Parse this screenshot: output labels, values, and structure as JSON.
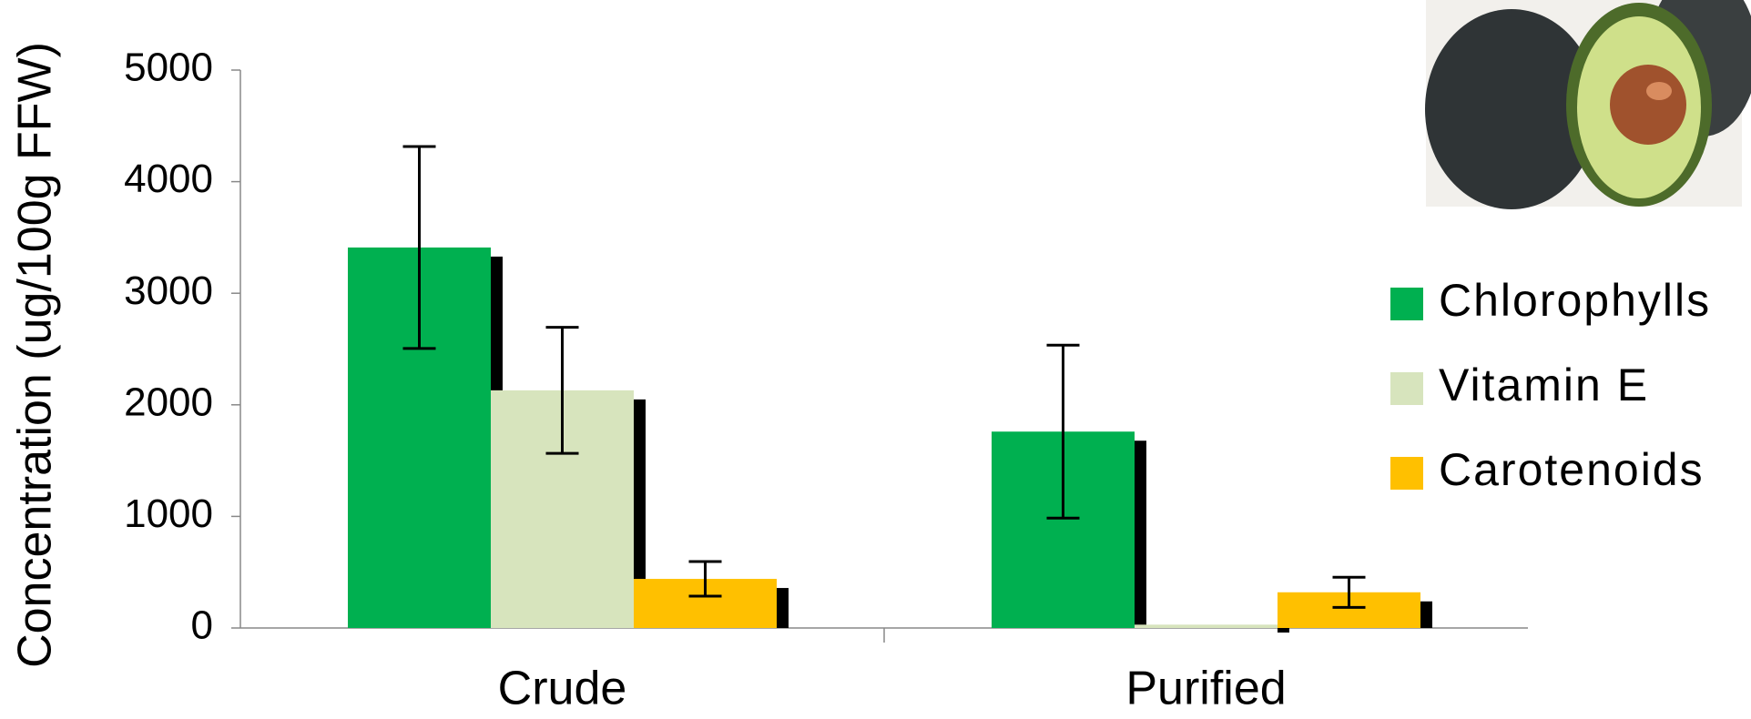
{
  "chart_data": {
    "type": "bar",
    "y_label": "Concentration (ug/100g FFW)",
    "categories": [
      "Crude",
      "Purified"
    ],
    "series": [
      {
        "name": "Chlorophylls",
        "color": "#00b050",
        "values": [
          3410,
          1760
        ],
        "errors": [
          905,
          775
        ]
      },
      {
        "name": "Vitamin E",
        "color": "#d7e4bd",
        "values": [
          2130,
          30
        ],
        "errors": [
          565,
          null
        ]
      },
      {
        "name": "Carotenoids",
        "color": "#ffc000",
        "values": [
          440,
          320
        ],
        "errors": [
          155,
          135
        ]
      }
    ],
    "ylim": [
      0,
      5000
    ],
    "yticks": [
      0,
      1000,
      2000,
      3000,
      4000,
      5000
    ],
    "grid": false,
    "legend": "right"
  }
}
